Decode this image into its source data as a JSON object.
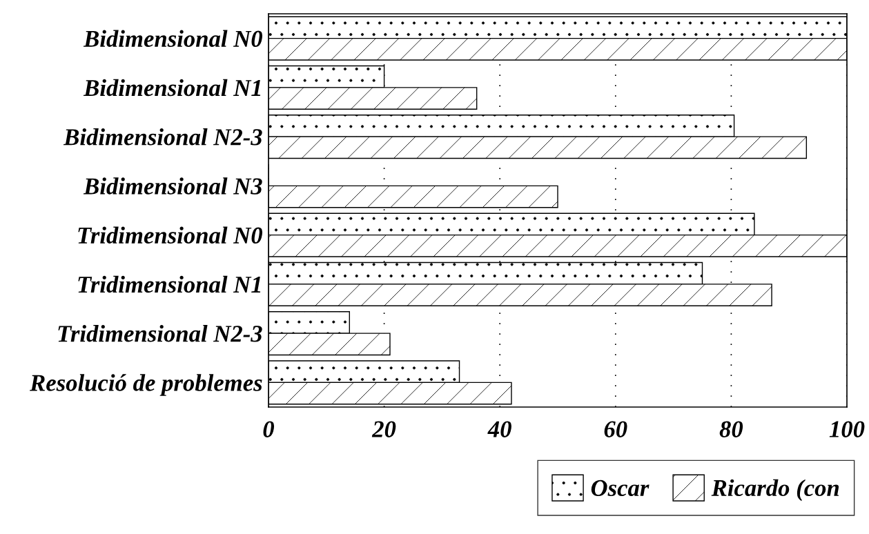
{
  "chart_data": {
    "type": "bar",
    "orientation": "horizontal",
    "categories": [
      "Bidimensional N0",
      "Bidimensional N1",
      "Bidimensional N2-3",
      "Bidimensional N3",
      "Tridimensional N0",
      "Tridimensional N1",
      "Tridimensional N2-3",
      "Resolució de problemes"
    ],
    "series": [
      {
        "name": "Oscar",
        "color": "#ffffff",
        "values": [
          100,
          20,
          80.5,
          0,
          84,
          75,
          14,
          33
        ]
      },
      {
        "name": "Ricardo (con",
        "color": "#ffffff",
        "values": [
          100,
          36,
          93,
          50,
          100,
          87,
          21,
          42
        ]
      }
    ],
    "xlim": [
      0,
      100
    ],
    "xticks": [
      0,
      20,
      40,
      60,
      80,
      100
    ],
    "grid": "x",
    "legend": "bottom right"
  }
}
